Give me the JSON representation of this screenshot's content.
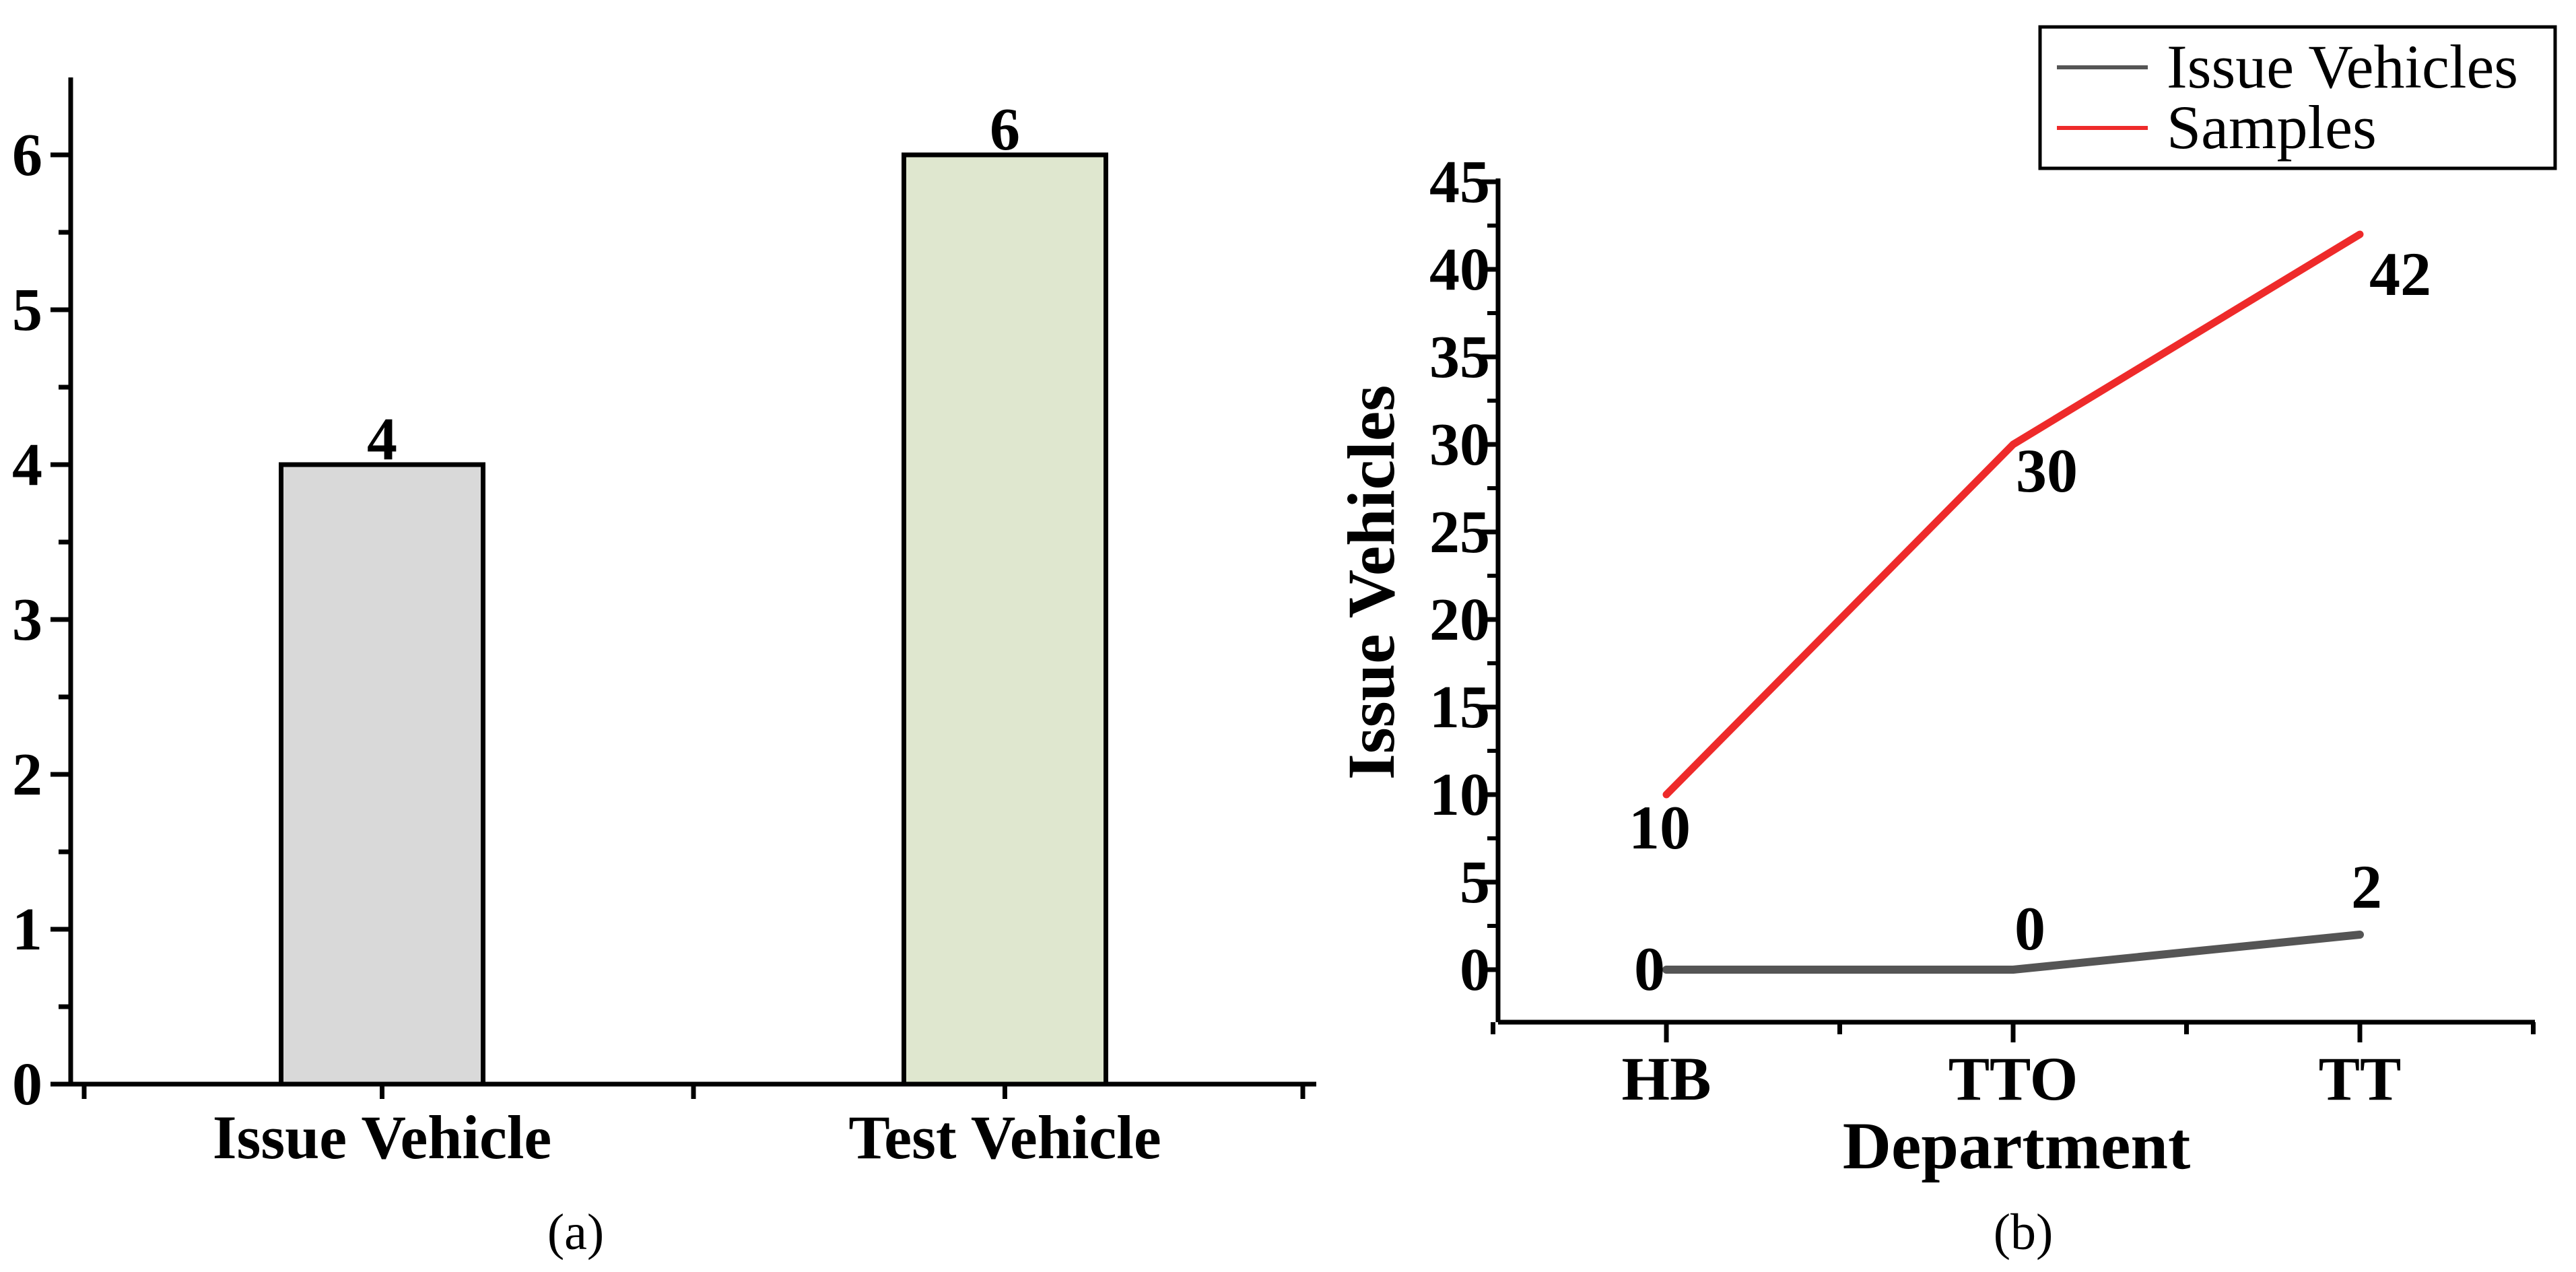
{
  "chart_data": [
    {
      "type": "bar",
      "panel_label": "(a)",
      "categories": [
        "Issue Vehicle",
        "Test Vehicle"
      ],
      "values": [
        4,
        6
      ],
      "data_labels": [
        "4",
        "6"
      ],
      "colors": [
        "#d9d9d9",
        "#dfe7cf"
      ],
      "ylim": [
        0,
        6
      ],
      "yticks": [
        0,
        1,
        2,
        3,
        4,
        5,
        6
      ],
      "ytick_labels": [
        "0",
        "1",
        "2",
        "3",
        "4",
        "5",
        "6"
      ],
      "title": "",
      "xlabel": "",
      "ylabel": "",
      "grid": false
    },
    {
      "type": "line",
      "panel_label": "(b)",
      "categories": [
        "HB",
        "TTO",
        "TT"
      ],
      "series": [
        {
          "name": "Issue Vehicles",
          "values": [
            0,
            0,
            2
          ],
          "point_labels": [
            "0",
            "0",
            "2"
          ],
          "color": "#555555"
        },
        {
          "name": "Samples",
          "values": [
            10,
            30,
            42
          ],
          "point_labels": [
            "10",
            "30",
            "42"
          ],
          "color": "#ee2a2a"
        }
      ],
      "ylim": [
        -3,
        45
      ],
      "yticks": [
        0,
        5,
        10,
        15,
        20,
        25,
        30,
        35,
        40,
        45
      ],
      "ytick_labels": [
        "0",
        "5",
        "10",
        "15",
        "20",
        "25",
        "30",
        "35",
        "40",
        "45"
      ],
      "xlabel": "Department",
      "ylabel": "Issue Vehicles",
      "title": "",
      "legend_position": "top-right",
      "grid": false
    }
  ]
}
